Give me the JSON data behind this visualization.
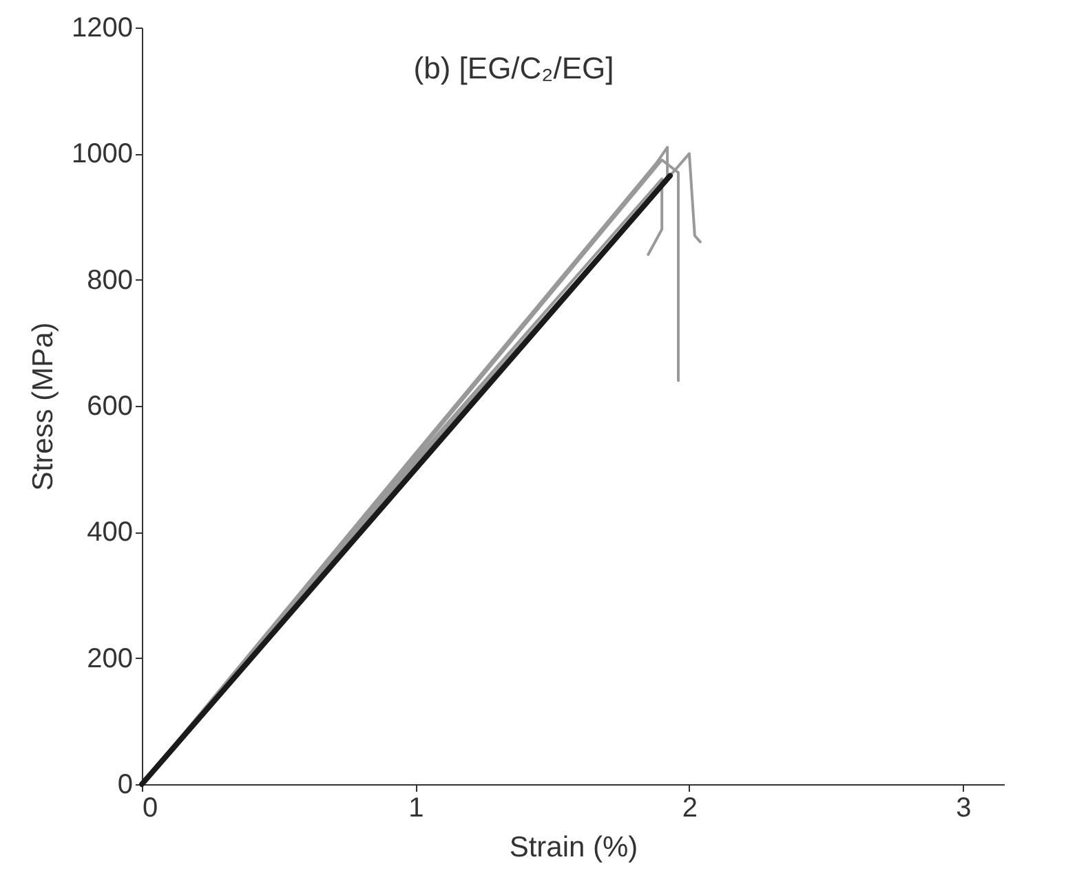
{
  "chart_data": {
    "type": "line",
    "title": "(b) [EG/C₂/EG]",
    "xlabel": "Strain (%)",
    "ylabel": "Stress (MPa)",
    "xlim": [
      0,
      3.15
    ],
    "xticks": [
      0,
      1,
      2,
      3
    ],
    "ylim": [
      0,
      1200
    ],
    "yticks": [
      0,
      200,
      400,
      600,
      800,
      1000,
      1200
    ],
    "grid": false,
    "line_style": "solid",
    "marker": "none",
    "series": [
      {
        "color": "#999999",
        "x": [
          0,
          1.0,
          1.88,
          1.92,
          1.92
        ],
        "values": [
          0,
          525,
          985,
          1010,
          960
        ]
      },
      {
        "color": "#999999",
        "x": [
          0,
          1.0,
          1.9,
          1.96,
          1.96
        ],
        "values": [
          0,
          520,
          990,
          970,
          640
        ]
      },
      {
        "color": "#999999",
        "x": [
          0,
          1.0,
          1.95,
          2.0,
          2.02,
          2.04
        ],
        "values": [
          0,
          510,
          975,
          1000,
          870,
          860
        ]
      },
      {
        "color": "#999999",
        "x": [
          0,
          1.0,
          1.9,
          1.9,
          1.85
        ],
        "values": [
          0,
          515,
          960,
          880,
          840
        ]
      },
      {
        "color": "#1a1a1a",
        "x": [
          0,
          1.93
        ],
        "values": [
          0,
          965
        ]
      }
    ]
  }
}
